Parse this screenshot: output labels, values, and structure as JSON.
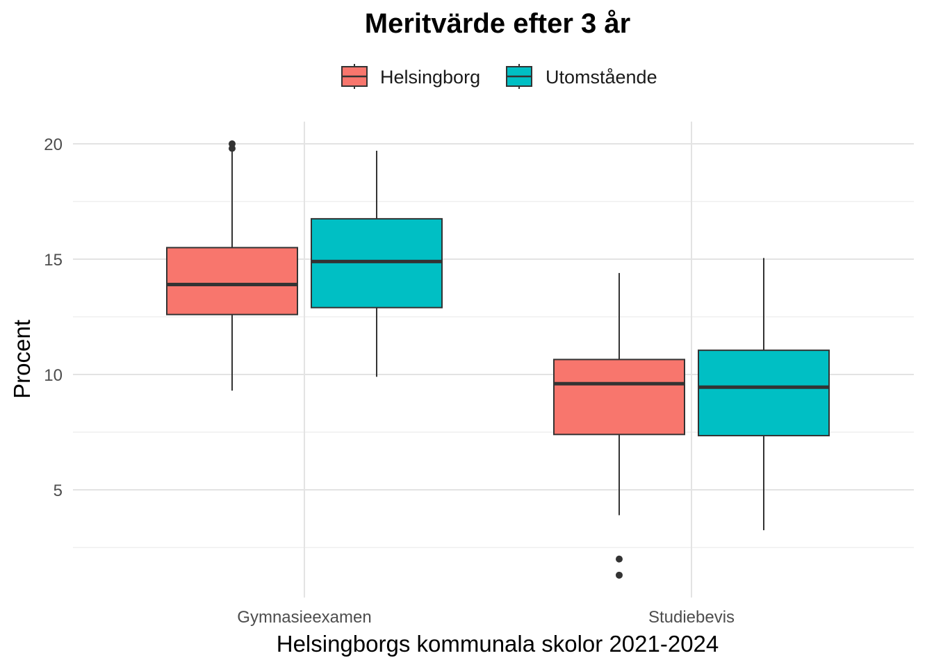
{
  "chart_data": {
    "type": "boxplot",
    "title": "Meritvärde efter 3 år",
    "xlabel": "Helsingborgs kommunala skolor 2021-2024",
    "ylabel": "Procent",
    "categories": [
      "Gymnasieexamen",
      "Studiebevis"
    ],
    "y_ticks": [
      5,
      10,
      15,
      20
    ],
    "y_tick_labels": [
      "5",
      "10",
      "15",
      "20"
    ],
    "ylim": [
      1.0,
      21.0
    ],
    "grid": true,
    "legend_position": "top",
    "series": [
      {
        "name": "Helsingborg",
        "color": "#F8766D",
        "boxes": [
          {
            "category": "Gymnasieexamen",
            "whisker_low": 9.3,
            "q1": 12.6,
            "median": 13.9,
            "q3": 15.5,
            "whisker_high": 19.7,
            "outliers": [
              19.8,
              20.0
            ]
          },
          {
            "category": "Studiebevis",
            "whisker_low": 3.9,
            "q1": 7.4,
            "median": 9.6,
            "q3": 10.65,
            "whisker_high": 14.4,
            "outliers": [
              2.0,
              1.3
            ]
          }
        ]
      },
      {
        "name": "Utomstående",
        "color": "#00BFC4",
        "boxes": [
          {
            "category": "Gymnasieexamen",
            "whisker_low": 9.9,
            "q1": 12.9,
            "median": 14.9,
            "q3": 16.75,
            "whisker_high": 19.7,
            "outliers": []
          },
          {
            "category": "Studiebevis",
            "whisker_low": 3.25,
            "q1": 7.35,
            "median": 9.45,
            "q3": 11.05,
            "whisker_high": 15.05,
            "outliers": []
          }
        ]
      }
    ]
  }
}
